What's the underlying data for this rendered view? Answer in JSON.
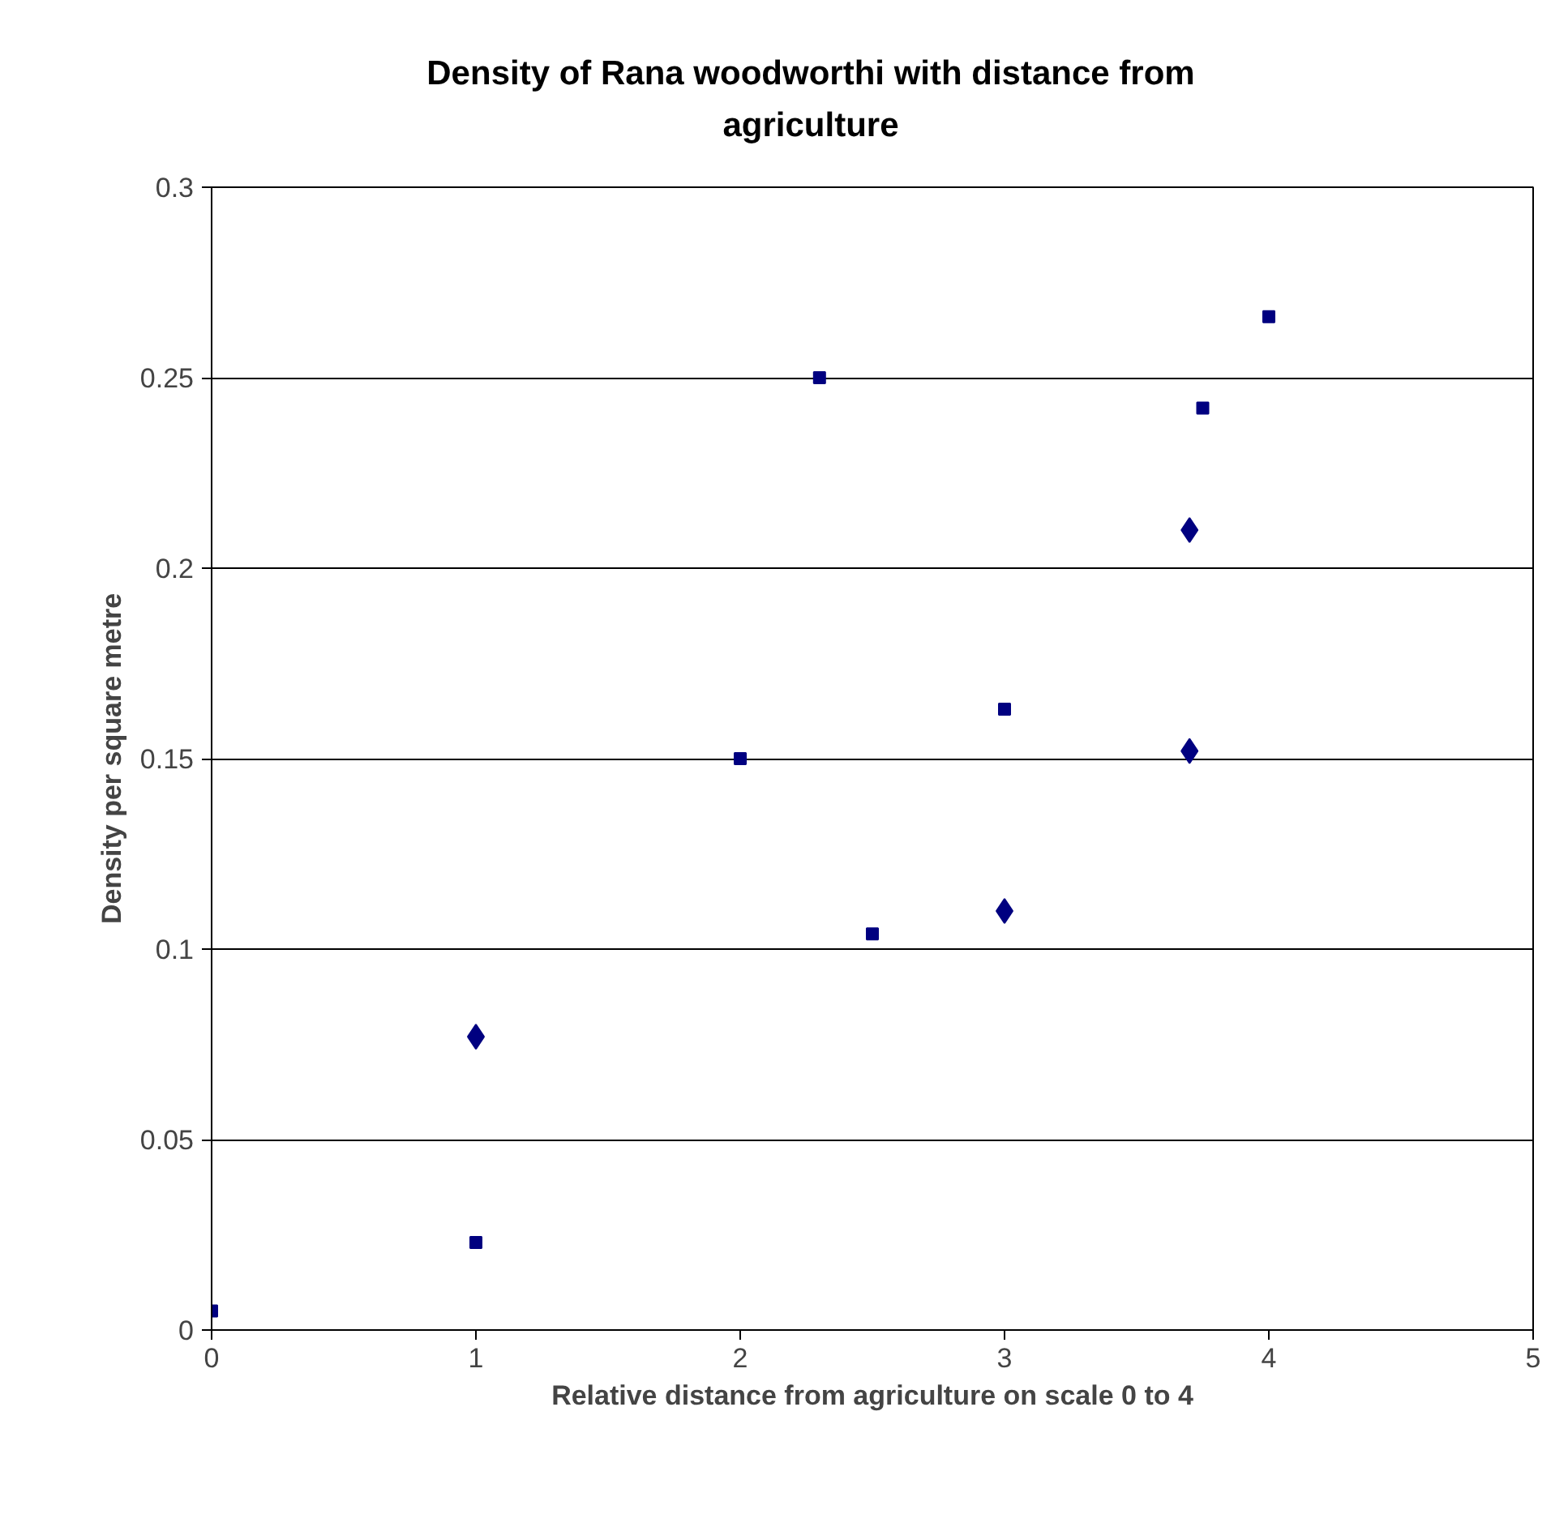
{
  "chart_data": {
    "type": "scatter",
    "title": "Density of Rana woodworthi with distance from agriculture",
    "xlabel": "Relative distance from agriculture on scale 0 to 4",
    "ylabel": "Density per square metre",
    "xlim": [
      0,
      5
    ],
    "xticks": [
      0,
      1,
      2,
      3,
      4,
      5
    ],
    "ylim": [
      0,
      0.3
    ],
    "yticks": [
      0,
      0.05,
      0.1,
      0.15,
      0.2,
      0.25,
      0.3
    ],
    "grid": "y",
    "series": [
      {
        "color": "#000080",
        "marker": "diamond",
        "x": [
          1,
          3,
          3.7,
          3.7
        ],
        "values": [
          0.077,
          0.11,
          0.152,
          0.21
        ]
      },
      {
        "color": "#000080",
        "marker": "square",
        "x": [
          0,
          1,
          2,
          2.3,
          2.5,
          3,
          3.75,
          4
        ],
        "values": [
          0.005,
          0.023,
          0.15,
          0.25,
          0.104,
          0.163,
          0.242,
          0.266
        ]
      }
    ]
  }
}
